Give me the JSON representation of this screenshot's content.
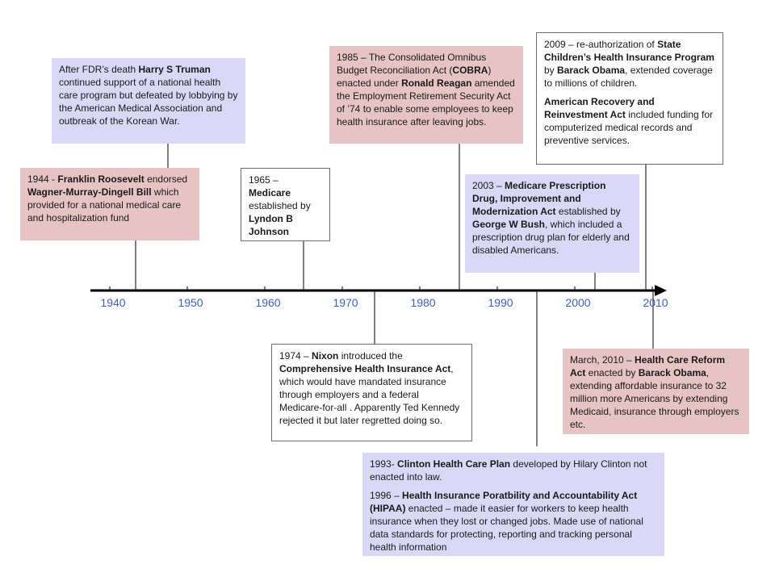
{
  "axis": {
    "years": [
      "1940",
      "1950",
      "1960",
      "1970",
      "1980",
      "1990",
      "2000",
      "2010"
    ],
    "line_color": "#000000",
    "year_label_color": "#3a5fcd"
  },
  "colors": {
    "pink": "#e6c4c4",
    "blue": "#d9d9f7",
    "white": "#ffffff"
  },
  "events": [
    {
      "id": "truman",
      "color": "blue",
      "paragraphs": [
        [
          {
            "t": "After FDR’s death "
          },
          {
            "t": "Harry S Truman",
            "b": true
          },
          {
            "t": " continued support of a national health care program but defeated by lobbying by the American Medical Association and outbreak of the Korean War."
          }
        ]
      ]
    },
    {
      "id": "roosevelt-1944",
      "color": "pink",
      "paragraphs": [
        [
          {
            "t": "1944 - "
          },
          {
            "t": "Franklin Roosevelt",
            "b": true
          },
          {
            "t": " endorsed "
          },
          {
            "t": "Wagner-Murray-Dingell Bill",
            "b": true
          },
          {
            "t": " which provided for a national medical care and hospitalization fund"
          }
        ]
      ]
    },
    {
      "id": "medicare-1965",
      "color": "white",
      "paragraphs": [
        [
          {
            "t": "1965 – "
          },
          {
            "t": "Medicare",
            "b": true
          },
          {
            "t": " established by "
          },
          {
            "t": "Lyndon B Johnson",
            "b": true
          }
        ]
      ]
    },
    {
      "id": "cobra-1985",
      "color": "pink",
      "paragraphs": [
        [
          {
            "t": "1985 – The Consolidated Omnibus Budget Reconciliation Act ("
          },
          {
            "t": "COBRA",
            "b": true
          },
          {
            "t": ") enacted under "
          },
          {
            "t": "Ronald Reagan",
            "b": true
          },
          {
            "t": " amended the Employment Retirement Security Act of ’74 to enable some employees to keep health insurance after leaving jobs."
          }
        ]
      ]
    },
    {
      "id": "schip-2009",
      "color": "white",
      "paragraphs": [
        [
          {
            "t": "2009 – re-authorization of "
          },
          {
            "t": "State Children’s Health Insurance Program",
            "b": true
          },
          {
            "t": " by "
          },
          {
            "t": "Barack Obama",
            "b": true
          },
          {
            "t": ", extended coverage to millions of children."
          }
        ],
        [
          {
            "t": "American Recovery and Reinvestment Act",
            "b": true
          },
          {
            "t": " included funding for computerized medical records and preventive services."
          }
        ]
      ]
    },
    {
      "id": "medicare-rx-2003",
      "color": "blue",
      "paragraphs": [
        [
          {
            "t": "2003 – "
          },
          {
            "t": "Medicare Prescription Drug, Improvement and Modernization Act",
            "b": true
          },
          {
            "t": " established by "
          },
          {
            "t": "George W Bush",
            "b": true
          },
          {
            "t": ", which included a prescription drug plan for elderly and disabled Americans."
          }
        ]
      ]
    },
    {
      "id": "nixon-1974",
      "color": "white",
      "paragraphs": [
        [
          {
            "t": "1974 – "
          },
          {
            "t": "Nixon",
            "b": true
          },
          {
            "t": " introduced the "
          },
          {
            "t": "Comprehensive Health Insurance Act",
            "b": true
          },
          {
            "t": ", which would have mandated insurance through employers and a federal Medicare-for-all . Apparently Ted Kennedy rejected it but later regretted doing so."
          }
        ]
      ]
    },
    {
      "id": "reform-2010",
      "color": "pink",
      "paragraphs": [
        [
          {
            "t": "March, 2010 – "
          },
          {
            "t": "Health Care Reform Act",
            "b": true
          },
          {
            "t": " enacted by "
          },
          {
            "t": "Barack Obama",
            "b": true
          },
          {
            "t": ", extending affordable insurance to 32 million more Americans by extending Medicaid, insurance through employers etc."
          }
        ]
      ]
    },
    {
      "id": "clinton-hipaa",
      "color": "blue",
      "paragraphs": [
        [
          {
            "t": "1993- "
          },
          {
            "t": "Clinton Health Care Plan",
            "b": true
          },
          {
            "t": " developed by Hilary Clinton not enacted into law."
          }
        ],
        [
          {
            "t": "1996 – "
          },
          {
            "t": "Health Insurance Poratbility and Accountability Act (HIPAA)",
            "b": true
          },
          {
            "t": " enacted – made it easier for workers to keep health insurance when they lost or changed jobs. Made use of national data standards for protecting, reporting and tracking personal health information"
          }
        ]
      ]
    }
  ]
}
